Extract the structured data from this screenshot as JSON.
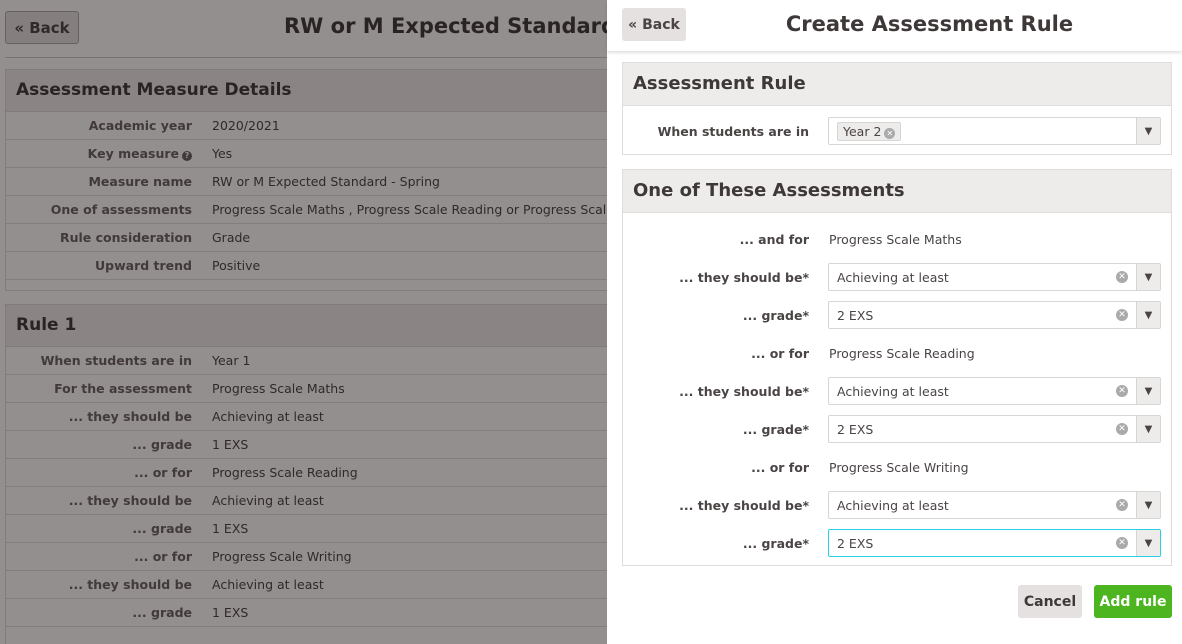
{
  "background": {
    "back_label": "« Back",
    "title": "RW or M Expected Standard - Spring",
    "details": {
      "heading": "Assessment Measure Details",
      "rows": [
        {
          "label": "Academic year",
          "value": "2020/2021"
        },
        {
          "label": "Key measure",
          "value": "Yes"
        },
        {
          "label": "Measure name",
          "value": "RW or M Expected Standard - Spring"
        },
        {
          "label": "One of assessments",
          "value": "Progress Scale Maths , Progress Scale Reading or Progress Scale Writing"
        },
        {
          "label": "Rule consideration",
          "value": "Grade"
        },
        {
          "label": "Upward trend",
          "value": "Positive"
        }
      ]
    },
    "rule1": {
      "heading": "Rule 1",
      "rows": [
        {
          "label": "When students are in",
          "value": "Year 1"
        },
        {
          "label": "For the assessment",
          "value": "Progress Scale Maths"
        },
        {
          "label": "... they should be",
          "value": "Achieving at least"
        },
        {
          "label": "... grade",
          "value": "1 EXS"
        },
        {
          "label": "... or for",
          "value": "Progress Scale Reading"
        },
        {
          "label": "... they should be",
          "value": "Achieving at least"
        },
        {
          "label": "... grade",
          "value": "1 EXS"
        },
        {
          "label": "... or for",
          "value": "Progress Scale Writing"
        },
        {
          "label": "... they should be",
          "value": "Achieving at least"
        },
        {
          "label": "... grade",
          "value": "1 EXS"
        }
      ]
    }
  },
  "panel": {
    "back_label": "« Back",
    "title": "Create Assessment Rule",
    "rule_section": {
      "heading": "Assessment Rule",
      "label": "When students are in",
      "tag": "Year 2"
    },
    "assess_section": {
      "heading": "One of These Assessments",
      "groups": [
        {
          "for_label": "... and for",
          "assessment": "Progress Scale Maths",
          "should_label": "... they should be*",
          "should_value": "Achieving at least",
          "grade_label": "... grade*",
          "grade_value": "2 EXS"
        },
        {
          "for_label": "... or for",
          "assessment": "Progress Scale Reading",
          "should_label": "... they should be*",
          "should_value": "Achieving at least",
          "grade_label": "... grade*",
          "grade_value": "2 EXS"
        },
        {
          "for_label": "... or for",
          "assessment": "Progress Scale Writing",
          "should_label": "... they should be*",
          "should_value": "Achieving at least",
          "grade_label": "... grade*",
          "grade_value": "2 EXS"
        }
      ]
    },
    "cancel_label": "Cancel",
    "add_label": "Add rule",
    "accent": "#4cb520"
  }
}
